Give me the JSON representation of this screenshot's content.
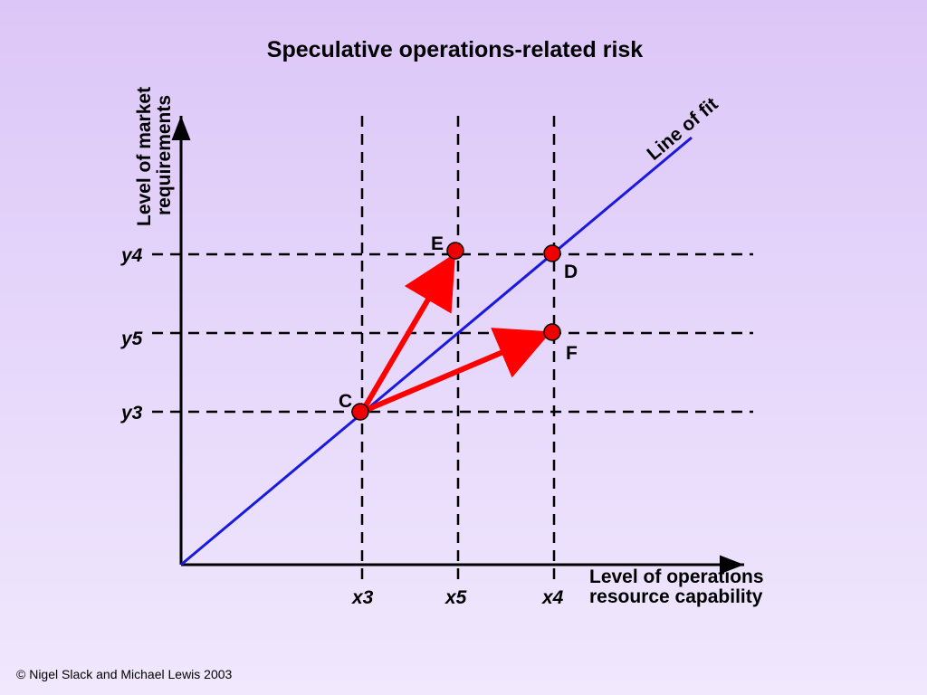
{
  "title": "Speculative operations-related risk",
  "y_axis_label": [
    "Level of market",
    "requirements"
  ],
  "x_axis_label": [
    "Level of operations",
    "resource capability"
  ],
  "fit_line_label": "Line of fit",
  "x_ticks": [
    "x3",
    "x5",
    "x4"
  ],
  "y_ticks": [
    "y4",
    "y5",
    "y3"
  ],
  "points": {
    "C": "C",
    "D": "D",
    "E": "E",
    "F": "F"
  },
  "copyright": "© Nigel Slack and Michael Lewis 2003",
  "colors": {
    "fit_line": "#1a1adf",
    "arrows": "#ff0000",
    "points": "#ee0000",
    "axes": "#000000"
  }
}
